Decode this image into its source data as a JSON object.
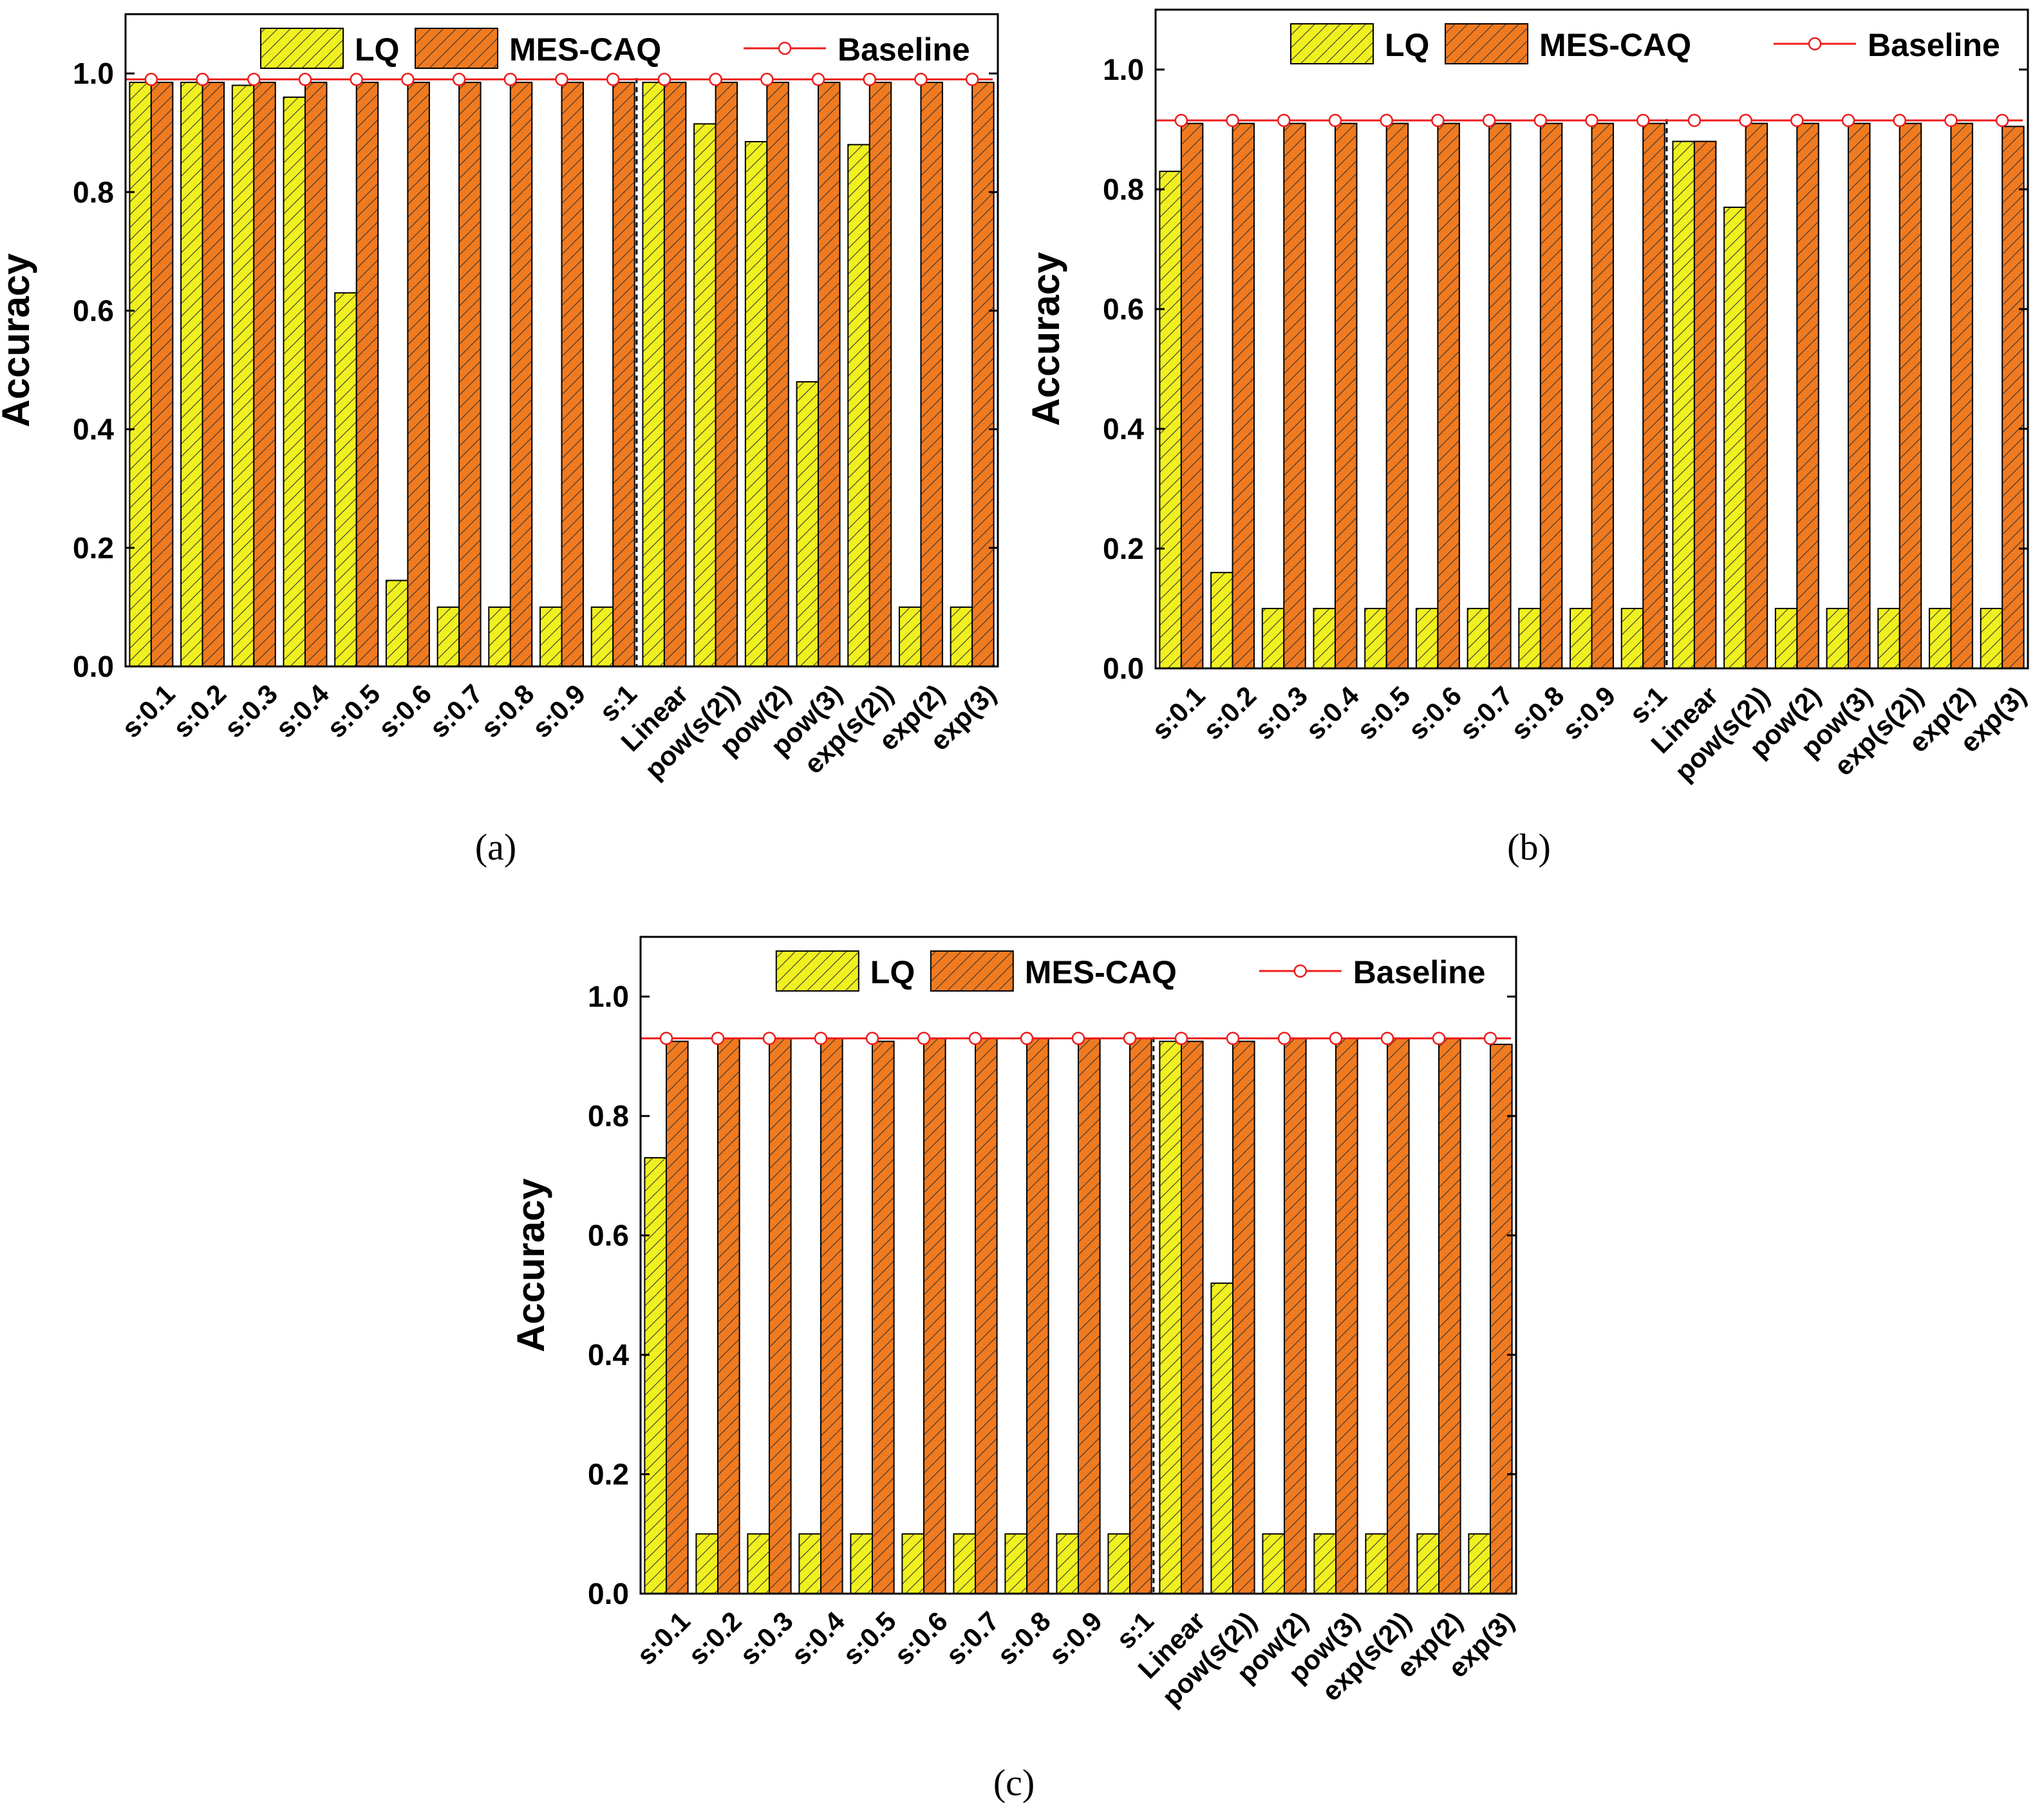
{
  "colors": {
    "lq_fill": "#f0f020",
    "mes_fill": "#f07a20",
    "baseline_line": "#ee1c1c",
    "hatch": "#333333",
    "axis": "#000000"
  },
  "legend": {
    "lq": "LQ",
    "mes": "MES-CAQ",
    "baseline": "Baseline"
  },
  "chart_data": [
    {
      "id": "a",
      "type": "bar",
      "caption": "(a)",
      "ylabel": "Accuracy",
      "xlabel": "",
      "ylim": [
        0,
        1.1
      ],
      "yticks": [
        "0.0",
        "0.2",
        "0.4",
        "0.6",
        "0.8",
        "1.0"
      ],
      "categories": [
        "s:0.1",
        "s:0.2",
        "s:0.3",
        "s:0.4",
        "s:0.5",
        "s:0.6",
        "s:0.7",
        "s:0.8",
        "s:0.9",
        "s:1",
        "Linear",
        "pow(s(2))",
        "pow(2)",
        "pow(3)",
        "exp(s(2))",
        "exp(2)",
        "exp(3)"
      ],
      "divider_after_index": 9,
      "series": [
        {
          "name": "LQ",
          "values": [
            0.985,
            0.985,
            0.98,
            0.96,
            0.63,
            0.145,
            0.1,
            0.1,
            0.1,
            0.1,
            0.985,
            0.915,
            0.885,
            0.48,
            0.88,
            0.1,
            0.1
          ]
        },
        {
          "name": "MES-CAQ",
          "values": [
            0.985,
            0.985,
            0.985,
            0.985,
            0.985,
            0.985,
            0.985,
            0.985,
            0.985,
            0.985,
            0.985,
            0.985,
            0.985,
            0.985,
            0.985,
            0.985,
            0.985
          ]
        },
        {
          "name": "Baseline",
          "values": [
            0.99,
            0.99,
            0.99,
            0.99,
            0.99,
            0.99,
            0.99,
            0.99,
            0.99,
            0.99,
            0.99,
            0.99,
            0.99,
            0.99,
            0.99,
            0.99,
            0.99
          ]
        }
      ]
    },
    {
      "id": "b",
      "type": "bar",
      "caption": "(b)",
      "ylabel": "Accuracy",
      "xlabel": "",
      "ylim": [
        0,
        1.1
      ],
      "yticks": [
        "0.0",
        "0.2",
        "0.4",
        "0.6",
        "0.8",
        "1.0"
      ],
      "categories": [
        "s:0.1",
        "s:0.2",
        "s:0.3",
        "s:0.4",
        "s:0.5",
        "s:0.6",
        "s:0.7",
        "s:0.8",
        "s:0.9",
        "s:1",
        "Linear",
        "pow(s(2))",
        "pow(2)",
        "pow(3)",
        "exp(s(2))",
        "exp(2)",
        "exp(3)"
      ],
      "divider_after_index": 9,
      "series": [
        {
          "name": "LQ",
          "values": [
            0.83,
            0.16,
            0.1,
            0.1,
            0.1,
            0.1,
            0.1,
            0.1,
            0.1,
            0.1,
            0.88,
            0.77,
            0.1,
            0.1,
            0.1,
            0.1,
            0.1
          ]
        },
        {
          "name": "MES-CAQ",
          "values": [
            0.91,
            0.91,
            0.91,
            0.91,
            0.91,
            0.91,
            0.91,
            0.91,
            0.91,
            0.91,
            0.88,
            0.91,
            0.91,
            0.91,
            0.91,
            0.91,
            0.905
          ]
        },
        {
          "name": "Baseline",
          "values": [
            0.915,
            0.915,
            0.915,
            0.915,
            0.915,
            0.915,
            0.915,
            0.915,
            0.915,
            0.915,
            0.915,
            0.915,
            0.915,
            0.915,
            0.915,
            0.915,
            0.915
          ]
        }
      ]
    },
    {
      "id": "c",
      "type": "bar",
      "caption": "(c)",
      "ylabel": "Accuracy",
      "xlabel": "",
      "ylim": [
        0,
        1.1
      ],
      "yticks": [
        "0.0",
        "0.2",
        "0.4",
        "0.6",
        "0.8",
        "1.0"
      ],
      "categories": [
        "s:0.1",
        "s:0.2",
        "s:0.3",
        "s:0.4",
        "s:0.5",
        "s:0.6",
        "s:0.7",
        "s:0.8",
        "s:0.9",
        "s:1",
        "Linear",
        "pow(s(2))",
        "pow(2)",
        "pow(3)",
        "exp(s(2))",
        "exp(2)",
        "exp(3)"
      ],
      "divider_after_index": 9,
      "series": [
        {
          "name": "LQ",
          "values": [
            0.73,
            0.1,
            0.1,
            0.1,
            0.1,
            0.1,
            0.1,
            0.1,
            0.1,
            0.1,
            0.925,
            0.52,
            0.1,
            0.1,
            0.1,
            0.1,
            0.1
          ]
        },
        {
          "name": "MES-CAQ",
          "values": [
            0.925,
            0.93,
            0.93,
            0.93,
            0.925,
            0.93,
            0.93,
            0.93,
            0.93,
            0.93,
            0.925,
            0.925,
            0.93,
            0.93,
            0.93,
            0.93,
            0.92
          ]
        },
        {
          "name": "Baseline",
          "values": [
            0.93,
            0.93,
            0.93,
            0.93,
            0.93,
            0.93,
            0.93,
            0.93,
            0.93,
            0.93,
            0.93,
            0.93,
            0.93,
            0.93,
            0.93,
            0.93,
            0.93
          ]
        }
      ]
    }
  ]
}
